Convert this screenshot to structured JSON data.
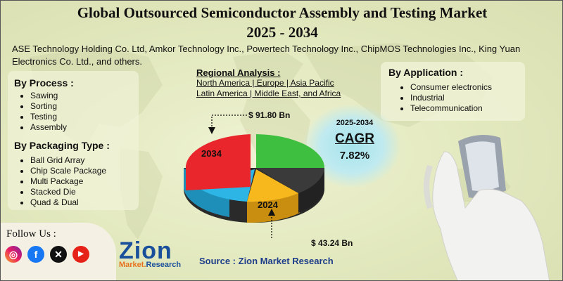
{
  "title_line1": "Global Outsourced Semiconductor Assembly and Testing Market",
  "title_line2": "2025 - 2034",
  "companies": "ASE Technology Holding Co. Ltd, Amkor Technology Inc., Powertech Technology Inc., ChipMOS Technologies Inc., King Yuan Electronics Co. Ltd., and others.",
  "process": {
    "heading": "By Process :",
    "items": [
      "Sawing",
      "Sorting",
      "Testing",
      "Assembly"
    ]
  },
  "packaging": {
    "heading": "By Packaging Type :",
    "items": [
      "Ball Grid Array",
      "Chip Scale Package",
      "Multi Package",
      "Stacked Die",
      "Quad & Dual"
    ]
  },
  "regional": {
    "heading": "Regional Analysis :",
    "line1": "North America | Europe | Asia Pacific",
    "line2": "Latin America | Middle East, and Africa"
  },
  "application": {
    "heading": "By Application :",
    "items": [
      "Consumer electronics",
      "Industrial",
      "Telecommunication"
    ]
  },
  "cagr": {
    "period": "2025-2034",
    "label": "CAGR",
    "value": "7.82%"
  },
  "pie": {
    "label_2034": "2034",
    "label_2024": "2024",
    "value_2034": "$ 91.80 Bn",
    "value_2024": "$ 43.24 Bn",
    "colors": {
      "red": "#e8262c",
      "green": "#3fbf3f",
      "dark": "#3a3a3a",
      "yellow": "#f6b81c",
      "blue": "#2db5e6"
    }
  },
  "follow": {
    "label": "Follow Us :",
    "icons": [
      "instagram-icon",
      "facebook-icon",
      "x-icon",
      "youtube-icon"
    ]
  },
  "logo": {
    "main": "Zion",
    "sub_a": "Market.",
    "sub_b": "Research"
  },
  "source": "Source : Zion Market Research"
}
